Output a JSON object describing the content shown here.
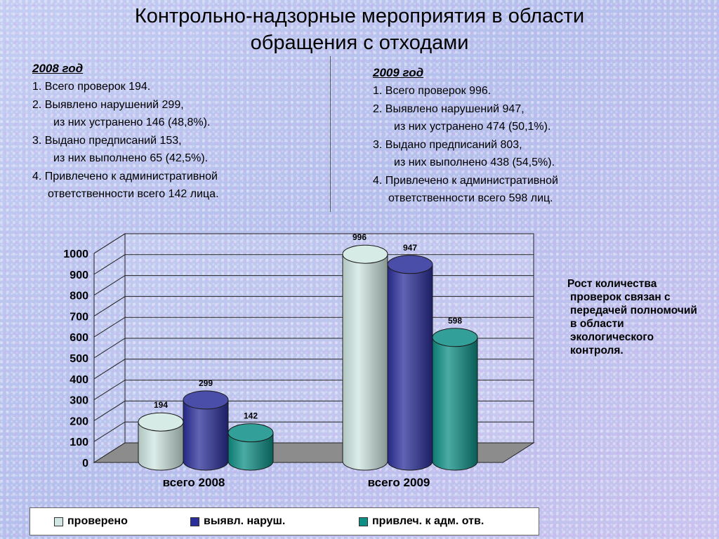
{
  "title_line1": "Контрольно-надзорные мероприятия в области",
  "title_line2": "обращения с отходами",
  "year_2008": {
    "heading": "2008 год",
    "lines": [
      "1. Всего проверок 194.",
      "2. Выявлено нарушений 299,",
      "из них устранено 146 (48,8%).",
      "3. Выдано предписаний 153,",
      "из них выполнено 65 (42,5%).",
      "4. Привлечено к административной",
      "ответственности всего 142 лица."
    ]
  },
  "year_2009": {
    "heading": "2009 год",
    "lines": [
      "1. Всего проверок 996.",
      "2. Выявлено нарушений 947,",
      "из них устранено 474 (50,1%).",
      "3. Выдано предписаний 803,",
      "из них выполнено 438 (54,5%).",
      "4. Привлечено к административной",
      "ответственности всего 598 лиц."
    ]
  },
  "note": {
    "line1": "Рост количества",
    "rest": "проверок связан с передачей полномочий в области экологического контроля."
  },
  "legend": [
    {
      "label": "проверено",
      "color": "#cfe6e2"
    },
    {
      "label": "выявл. наруш.",
      "color": "#2b2f9a"
    },
    {
      "label": "привлеч. к адм. отв.",
      "color": "#0e8f86"
    }
  ],
  "chart_data": {
    "type": "bar",
    "style": "3d-cylinder",
    "categories": [
      "всего 2008",
      "всего 2009"
    ],
    "series": [
      {
        "name": "проверено",
        "values": [
          194,
          996
        ],
        "color": "#cfe6e2"
      },
      {
        "name": "выявл. наруш.",
        "values": [
          299,
          947
        ],
        "color": "#2b2f9a"
      },
      {
        "name": "привлеч. к адм. отв.",
        "values": [
          142,
          598
        ],
        "color": "#0e8f86"
      }
    ],
    "yticks": [
      0,
      100,
      200,
      300,
      400,
      500,
      600,
      700,
      800,
      900,
      1000
    ],
    "ylim": [
      0,
      1000
    ],
    "grid": true,
    "data_labels": true,
    "legend_position": "bottom"
  }
}
